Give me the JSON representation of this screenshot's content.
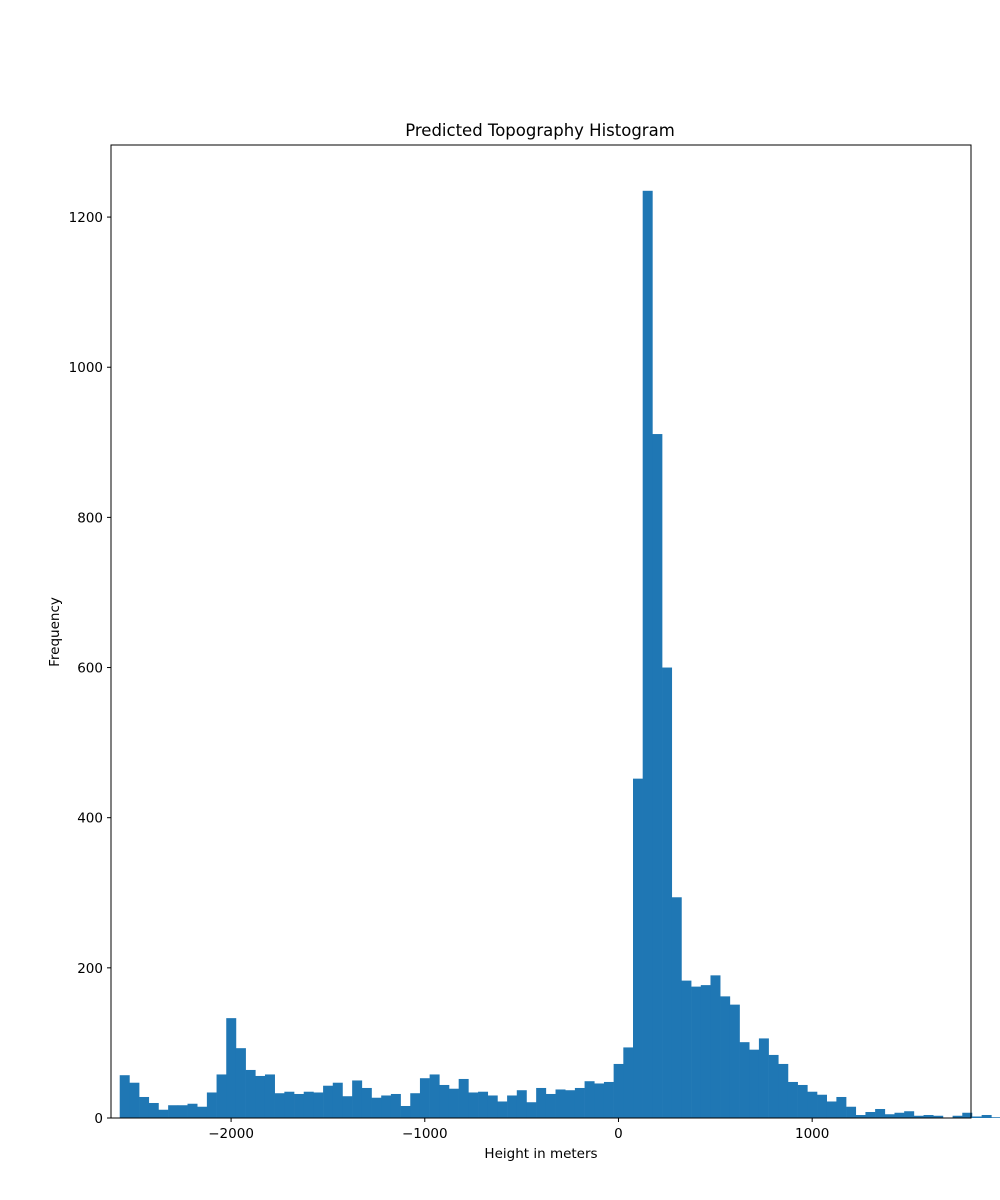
{
  "chart_data": {
    "type": "bar",
    "title": "Predicted Topography Histogram",
    "xlabel": "Height in meters",
    "ylabel": "Frequency",
    "xlim": [
      -2620,
      1820
    ],
    "ylim": [
      0,
      1296
    ],
    "grid": false,
    "legend": "none",
    "bar_color": "#1f77b4",
    "x_ticks": [
      {
        "value": -2000,
        "label": "−2000"
      },
      {
        "value": -1000,
        "label": "−1000"
      },
      {
        "value": 0,
        "label": "0"
      },
      {
        "value": 1000,
        "label": "1000"
      }
    ],
    "y_ticks": [
      {
        "value": 0,
        "label": "0"
      },
      {
        "value": 200,
        "label": "200"
      },
      {
        "value": 400,
        "label": "400"
      },
      {
        "value": 600,
        "label": "600"
      },
      {
        "value": 800,
        "label": "800"
      },
      {
        "value": 1000,
        "label": "1000"
      },
      {
        "value": 1200,
        "label": "1200"
      }
    ],
    "bins": {
      "start": -2575,
      "width": 50,
      "values": [
        57,
        47,
        28,
        20,
        11,
        17,
        17,
        19,
        15,
        34,
        58,
        133,
        93,
        64,
        56,
        58,
        33,
        35,
        32,
        35,
        34,
        43,
        47,
        29,
        50,
        40,
        27,
        30,
        32,
        16,
        33,
        53,
        58,
        44,
        39,
        52,
        34,
        35,
        30,
        22,
        30,
        37,
        21,
        40,
        32,
        38,
        37,
        40,
        49,
        46,
        48,
        72,
        94,
        452,
        1235,
        911,
        600,
        294,
        183,
        175,
        177,
        190,
        162,
        151,
        101,
        91,
        106,
        84,
        72,
        48,
        44,
        35,
        31,
        22,
        28,
        15,
        4,
        8,
        12,
        5,
        7,
        9,
        3,
        4,
        3,
        0,
        3,
        7,
        2,
        4,
        1,
        0,
        3
      ]
    }
  }
}
